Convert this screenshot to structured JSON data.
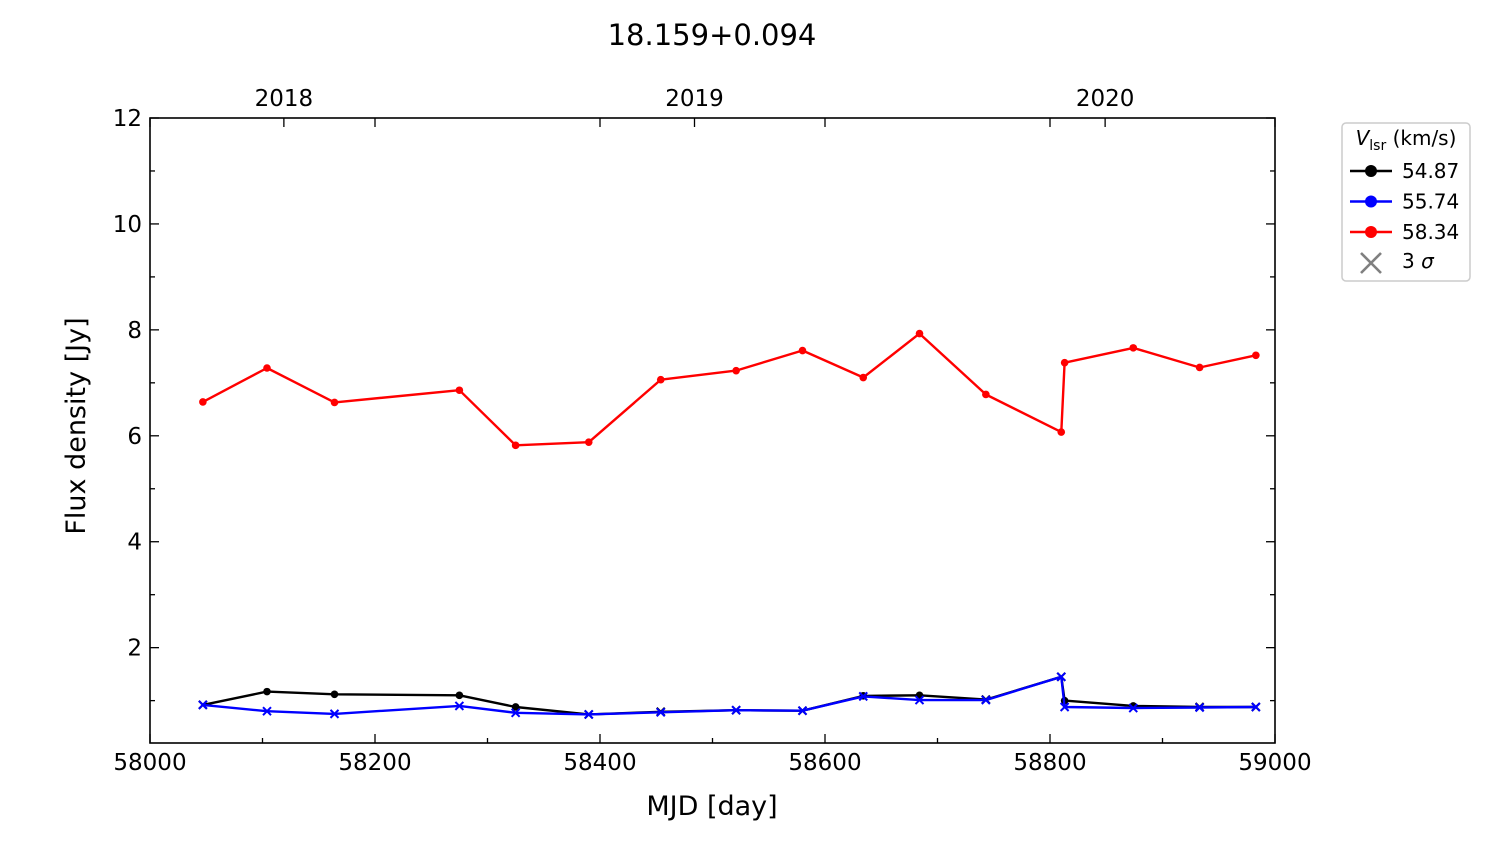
{
  "chart_data": {
    "type": "line",
    "title": "18.159+0.094",
    "xlabel": "MJD [day]",
    "ylabel": "Flux density [Jy]",
    "xlim": [
      58000,
      59000
    ],
    "ylim": [
      0.2,
      12
    ],
    "x_ticks": [
      "58000",
      "58200",
      "58400",
      "58600",
      "58800",
      "59000"
    ],
    "y_ticks": [
      "2",
      "4",
      "6",
      "8",
      "10",
      "12"
    ],
    "top_axis_ticks": [
      {
        "label": "2018",
        "mjd": 58119
      },
      {
        "label": "2019",
        "mjd": 58484
      },
      {
        "label": "2020",
        "mjd": 58849
      }
    ],
    "grid": false,
    "legend": {
      "placement": "outside-right",
      "title_italic": "V",
      "title_subscript": "lsr",
      "title_suffix": " (km/s)",
      "sigma_label_prefix": "3 ",
      "sigma_label_symbol": "σ"
    },
    "series": [
      {
        "name": "54.87",
        "color": "#000000",
        "x": [
          58047,
          58104,
          58164,
          58275,
          58325,
          58390,
          58454,
          58521,
          58580,
          58634,
          58684,
          58743,
          58810,
          58813,
          58874,
          58933,
          58983
        ],
        "y": [
          0.92,
          1.17,
          1.12,
          1.1,
          0.88,
          0.74,
          0.79,
          0.82,
          0.81,
          1.09,
          1.1,
          1.02,
          1.45,
          1.0,
          0.9,
          0.88,
          0.88
        ],
        "upper_limit": [
          true,
          false,
          false,
          false,
          false,
          true,
          true,
          true,
          true,
          false,
          false,
          true,
          true,
          false,
          false,
          true,
          true
        ]
      },
      {
        "name": "55.74",
        "color": "#0000ff",
        "x": [
          58047,
          58104,
          58164,
          58275,
          58325,
          58390,
          58454,
          58521,
          58580,
          58634,
          58684,
          58743,
          58810,
          58813,
          58874,
          58933,
          58983
        ],
        "y": [
          0.92,
          0.8,
          0.75,
          0.9,
          0.77,
          0.74,
          0.78,
          0.82,
          0.81,
          1.08,
          1.01,
          1.01,
          1.45,
          0.88,
          0.86,
          0.87,
          0.88
        ],
        "upper_limit": [
          true,
          true,
          true,
          true,
          true,
          true,
          true,
          true,
          true,
          true,
          true,
          true,
          true,
          true,
          true,
          true,
          true
        ]
      },
      {
        "name": "58.34",
        "color": "#ff0000",
        "x": [
          58047,
          58104,
          58164,
          58275,
          58325,
          58390,
          58454,
          58521,
          58580,
          58634,
          58684,
          58743,
          58810,
          58813,
          58874,
          58933,
          58983
        ],
        "y": [
          6.64,
          7.28,
          6.63,
          6.86,
          5.82,
          5.88,
          7.06,
          7.23,
          7.61,
          7.1,
          7.93,
          6.78,
          6.07,
          7.38,
          7.66,
          7.29,
          7.52
        ],
        "upper_limit": [
          false,
          false,
          false,
          false,
          false,
          false,
          false,
          false,
          false,
          false,
          false,
          false,
          false,
          false,
          false,
          false,
          false
        ]
      }
    ]
  }
}
